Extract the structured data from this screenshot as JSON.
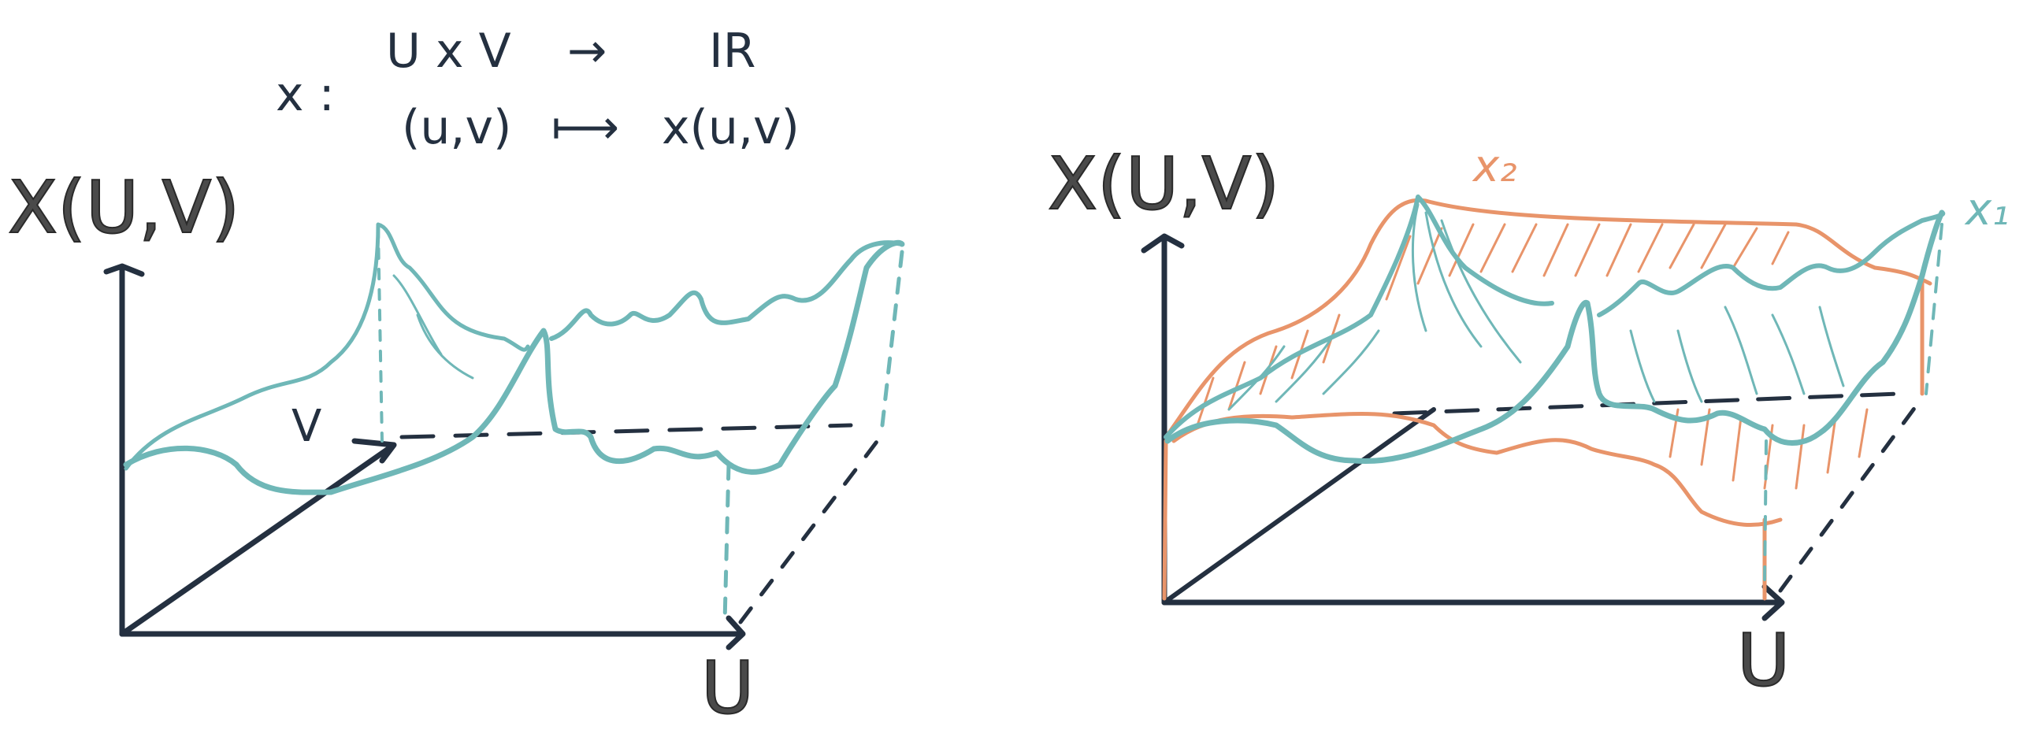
{
  "formula": {
    "map_symbol": "x :",
    "domain": "U x V",
    "arrow": "→",
    "codomain": "IR",
    "input": "(u,v)",
    "maps_to": "⟼",
    "output": "x(u,v)"
  },
  "left_plot": {
    "vertical_axis_label": "X(U,V)",
    "horizontal_axis_label": "U",
    "depth_axis_label": "V"
  },
  "right_plot": {
    "vertical_axis_label": "X(U,V)",
    "horizontal_axis_label": "U",
    "surface_label_1": "x₁",
    "surface_label_2": "x₂"
  },
  "colors": {
    "axis": "#243040",
    "surface_teal": "#6fb7b7",
    "surface_orange": "#e8946a",
    "label_grey": "#4a4a4a"
  }
}
